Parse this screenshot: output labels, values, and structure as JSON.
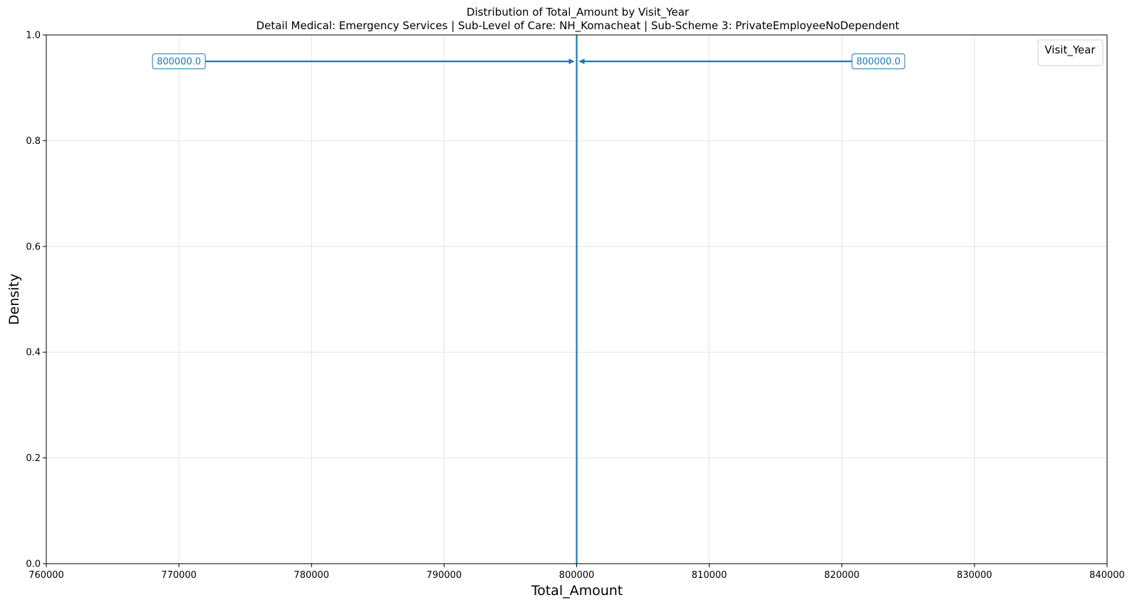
{
  "chart_data": {
    "type": "line",
    "title": "Distribution of Total_Amount by Visit_Year",
    "subtitle": "Detail Medical: Emergency Services | Sub-Level of Care: NH_Komacheat | Sub-Scheme 3: PrivateEmployeeNoDependent",
    "xlabel": "Total_Amount",
    "ylabel": "Density",
    "xlim": [
      760000,
      840000
    ],
    "ylim": [
      0,
      1
    ],
    "x_ticks": [
      760000,
      770000,
      780000,
      790000,
      800000,
      810000,
      820000,
      830000,
      840000
    ],
    "x_tick_labels": [
      "760000",
      "770000",
      "780000",
      "790000",
      "800000",
      "810000",
      "820000",
      "830000",
      "840000"
    ],
    "y_ticks": [
      0,
      0.2,
      0.4,
      0.6,
      0.8,
      1
    ],
    "y_tick_labels": [
      "0.0",
      "0.2",
      "0.4",
      "0.6",
      "0.8",
      "1.0"
    ],
    "grid": true,
    "legend": {
      "title": "Visit_Year",
      "placement": "top-right",
      "entries": []
    },
    "reference_lines": [
      {
        "x": 800000,
        "style": "solid",
        "color": "#1f77b4"
      },
      {
        "x": 800000,
        "style": "dashed",
        "color": "#1f77b4"
      }
    ],
    "annotations": [
      {
        "text": "800000.0",
        "text_x": 770000,
        "arrow_to_x": 800000,
        "y": 0.95,
        "color": "#1f77b4"
      },
      {
        "text": "800000.0",
        "text_x": 822000,
        "arrow_to_x": 800000,
        "y": 0.95,
        "color": "#1f77b4"
      }
    ]
  }
}
